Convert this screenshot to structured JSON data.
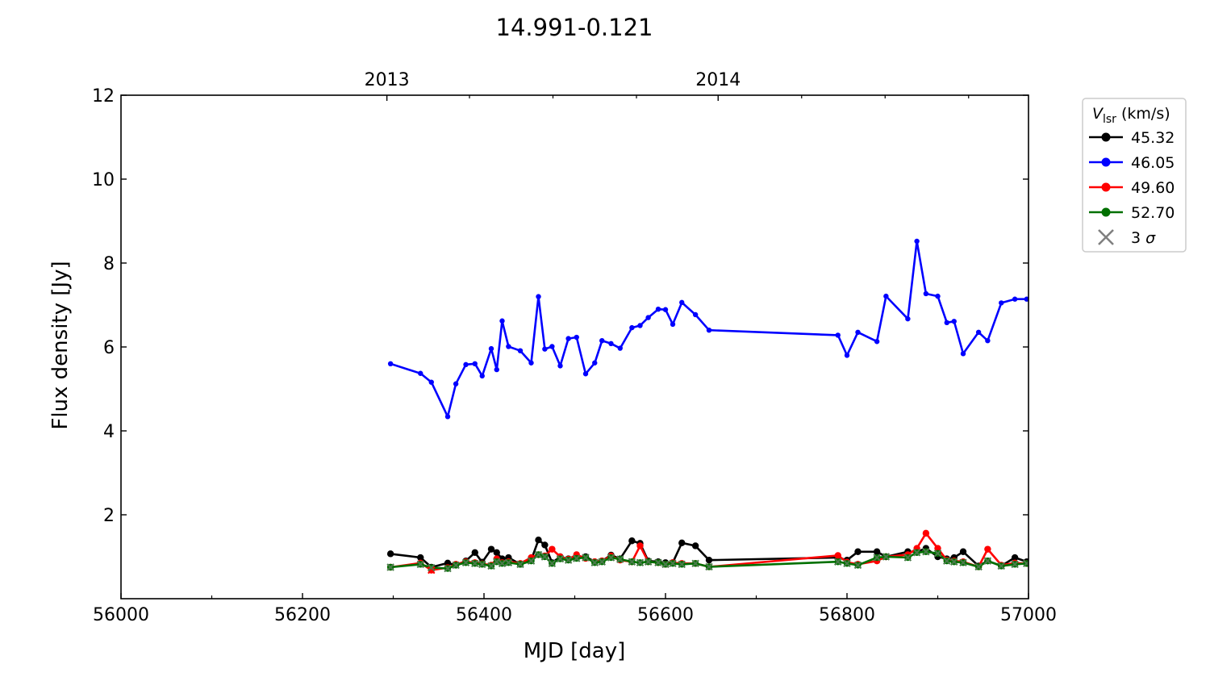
{
  "chart_data": {
    "type": "line",
    "title": "14.991-0.121",
    "xlabel": "MJD [day]",
    "ylabel": "Flux density [Jy]",
    "xlim": [
      56000,
      57000
    ],
    "ylim": [
      0,
      12
    ],
    "x_ticks": [
      56000,
      56200,
      56400,
      56600,
      56800,
      57000
    ],
    "x_tick_labels": [
      "56000",
      "56200",
      "56400",
      "56600",
      "56800",
      "57000"
    ],
    "y_ticks": [
      2,
      4,
      6,
      8,
      10,
      12
    ],
    "y_tick_labels": [
      "2",
      "4",
      "6",
      "8",
      "10",
      "12"
    ],
    "top_axis": {
      "ticks": [
        56293,
        56658
      ],
      "labels": [
        "2013",
        "2014"
      ]
    },
    "legend": {
      "title_main": "V",
      "title_sub": "lsr",
      "title_unit": "(km/s)",
      "position": "outside-right-top",
      "sigma_label": "3 σ",
      "sigma_color": "#808080"
    },
    "series": [
      {
        "name": "45.32",
        "color": "#000000",
        "x": [
          56297,
          56330,
          56342,
          56360,
          56369,
          56380,
          56390,
          56398,
          56408,
          56414,
          56420,
          56427,
          56440,
          56452,
          56460,
          56467,
          56475,
          56484,
          56493,
          56502,
          56512,
          56522,
          56530,
          56540,
          56550,
          56563,
          56572,
          56581,
          56592,
          56600,
          56608,
          56618,
          56633,
          56648,
          56790,
          56800,
          56812,
          56833,
          56843,
          56867,
          56877,
          56887,
          56900,
          56910,
          56918,
          56928,
          56945,
          56955,
          56970,
          56985,
          56998
        ],
        "y": [
          1.07,
          0.98,
          0.75,
          0.85,
          0.8,
          0.9,
          1.1,
          0.87,
          1.18,
          1.1,
          0.95,
          0.98,
          0.82,
          0.92,
          1.4,
          1.28,
          0.86,
          1.0,
          0.95,
          1.0,
          1.0,
          0.88,
          0.9,
          1.04,
          0.95,
          1.38,
          1.32,
          0.9,
          0.88,
          0.86,
          0.86,
          1.33,
          1.26,
          0.92,
          0.98,
          0.92,
          1.12,
          1.12,
          1.0,
          1.12,
          1.12,
          1.2,
          1.0,
          0.95,
          0.98,
          1.12,
          0.78,
          0.9,
          0.78,
          0.98,
          0.88
        ]
      },
      {
        "name": "46.05",
        "color": "#0000ff",
        "x": [
          56297,
          56330,
          56342,
          56360,
          56369,
          56380,
          56390,
          56398,
          56408,
          56414,
          56420,
          56427,
          56440,
          56452,
          56460,
          56467,
          56475,
          56484,
          56493,
          56502,
          56512,
          56522,
          56530,
          56540,
          56550,
          56563,
          56572,
          56581,
          56592,
          56600,
          56608,
          56618,
          56633,
          56648,
          56790,
          56800,
          56812,
          56833,
          56843,
          56867,
          56877,
          56887,
          56900,
          56910,
          56918,
          56928,
          56945,
          56955,
          56970,
          56985,
          56998
        ],
        "y": [
          5.6,
          5.37,
          5.16,
          4.34,
          5.12,
          5.58,
          5.6,
          5.31,
          5.96,
          5.46,
          6.62,
          6.01,
          5.91,
          5.62,
          7.2,
          5.95,
          6.01,
          5.55,
          6.2,
          6.23,
          5.36,
          5.62,
          6.15,
          6.08,
          5.97,
          6.46,
          6.51,
          6.7,
          6.9,
          6.89,
          6.54,
          7.06,
          6.77,
          6.4,
          6.28,
          5.8,
          6.35,
          6.13,
          7.21,
          6.67,
          8.52,
          7.27,
          7.21,
          6.58,
          6.61,
          5.84,
          6.35,
          6.15,
          7.05,
          7.14,
          7.14
        ]
      },
      {
        "name": "49.60",
        "color": "#ff0000",
        "x": [
          56297,
          56330,
          56342,
          56360,
          56369,
          56380,
          56390,
          56398,
          56408,
          56414,
          56420,
          56427,
          56440,
          56452,
          56460,
          56467,
          56475,
          56484,
          56493,
          56502,
          56512,
          56522,
          56530,
          56540,
          56550,
          56563,
          56572,
          56581,
          56592,
          56600,
          56608,
          56618,
          56633,
          56648,
          56790,
          56800,
          56812,
          56833,
          56843,
          56867,
          56877,
          56887,
          56900,
          56910,
          56918,
          56928,
          56945,
          56955,
          56970,
          56985,
          56998
        ],
        "y": [
          0.75,
          0.85,
          0.68,
          0.74,
          0.82,
          0.88,
          0.86,
          0.83,
          0.8,
          0.95,
          0.86,
          0.88,
          0.84,
          0.98,
          1.05,
          1.02,
          1.18,
          1.0,
          0.94,
          1.05,
          0.96,
          0.88,
          0.9,
          1.02,
          0.92,
          0.88,
          1.26,
          0.88,
          0.86,
          0.82,
          0.86,
          0.84,
          0.84,
          0.76,
          1.03,
          0.87,
          0.82,
          0.9,
          1.0,
          1.05,
          1.2,
          1.56,
          1.2,
          0.92,
          0.9,
          0.88,
          0.76,
          1.18,
          0.8,
          0.85,
          0.84
        ]
      },
      {
        "name": "52.70",
        "color": "#007000",
        "x": [
          56297,
          56330,
          56342,
          56360,
          56369,
          56380,
          56390,
          56398,
          56408,
          56414,
          56420,
          56427,
          56440,
          56452,
          56460,
          56467,
          56475,
          56484,
          56493,
          56502,
          56512,
          56522,
          56530,
          56540,
          56550,
          56563,
          56572,
          56581,
          56592,
          56600,
          56608,
          56618,
          56633,
          56648,
          56790,
          56800,
          56812,
          56833,
          56843,
          56867,
          56877,
          56887,
          56900,
          56910,
          56918,
          56928,
          56945,
          56955,
          56970,
          56985,
          56998
        ],
        "y": [
          0.75,
          0.82,
          0.74,
          0.72,
          0.8,
          0.86,
          0.84,
          0.82,
          0.78,
          0.88,
          0.84,
          0.86,
          0.82,
          0.9,
          1.05,
          1.0,
          0.84,
          0.95,
          0.92,
          0.96,
          0.98,
          0.86,
          0.88,
          0.98,
          0.94,
          0.88,
          0.86,
          0.88,
          0.86,
          0.82,
          0.84,
          0.82,
          0.84,
          0.76,
          0.88,
          0.84,
          0.8,
          0.98,
          1.0,
          0.98,
          1.1,
          1.12,
          1.08,
          0.9,
          0.88,
          0.86,
          0.76,
          0.9,
          0.78,
          0.82,
          0.84
        ]
      }
    ],
    "sigma_series": [
      {
        "series": "49.60",
        "x": [
          56342
        ],
        "y": [
          0.68
        ]
      },
      {
        "series": "52.70",
        "x": [
          56297,
          56330,
          56342,
          56360,
          56369,
          56380,
          56390,
          56398,
          56408,
          56414,
          56420,
          56427,
          56440,
          56452,
          56460,
          56467,
          56475,
          56484,
          56493,
          56502,
          56512,
          56522,
          56530,
          56540,
          56550,
          56563,
          56572,
          56581,
          56592,
          56600,
          56608,
          56618,
          56633,
          56648,
          56790,
          56800,
          56812,
          56833,
          56843,
          56867,
          56877,
          56887,
          56900,
          56910,
          56918,
          56928,
          56945,
          56955,
          56970,
          56985,
          56998
        ],
        "y": [
          0.75,
          0.82,
          0.74,
          0.72,
          0.8,
          0.86,
          0.84,
          0.82,
          0.78,
          0.88,
          0.84,
          0.86,
          0.82,
          0.9,
          1.05,
          1.0,
          0.84,
          0.95,
          0.92,
          0.96,
          0.98,
          0.86,
          0.88,
          0.98,
          0.94,
          0.88,
          0.86,
          0.88,
          0.86,
          0.82,
          0.84,
          0.82,
          0.84,
          0.76,
          0.88,
          0.84,
          0.8,
          0.98,
          1.0,
          0.98,
          1.1,
          1.12,
          1.08,
          0.9,
          0.88,
          0.86,
          0.76,
          0.9,
          0.78,
          0.82,
          0.84
        ]
      }
    ]
  }
}
